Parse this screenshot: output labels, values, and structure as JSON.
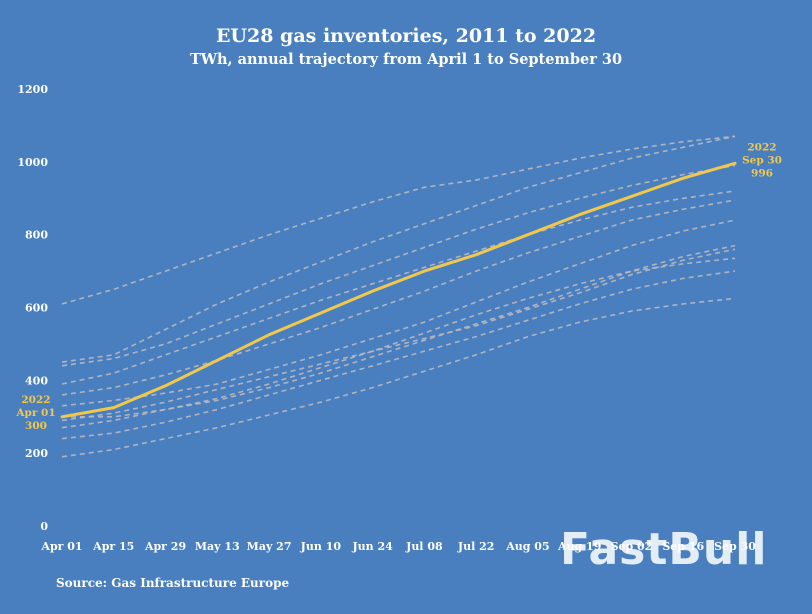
{
  "chart_data": {
    "type": "line",
    "title": "EU28 gas inventories, 2011 to 2022",
    "subtitle": "TWh, annual trajectory from April 1 to September 30",
    "ylim": [
      0,
      1200
    ],
    "yticks": [
      0,
      200,
      400,
      600,
      800,
      1000,
      1200
    ],
    "x": [
      "Apr 01",
      "Apr 15",
      "Apr 29",
      "May 13",
      "May 27",
      "Jun 10",
      "Jun 24",
      "Jul 08",
      "Jul 22",
      "Aug 05",
      "Aug 19",
      "Sep 02",
      "Sep 16",
      "Sep 30"
    ],
    "xlim": [
      "Apr 01",
      "Sep 30"
    ],
    "grid": false,
    "legend": "none",
    "series": [
      {
        "name": "2022",
        "highlight": true,
        "color": "#f2c84b",
        "values": [
          300,
          325,
          385,
          455,
          525,
          585,
          645,
          700,
          745,
          800,
          855,
          905,
          955,
          996
        ]
      },
      {
        "values": [
          610,
          650,
          700,
          750,
          800,
          845,
          890,
          930,
          950,
          980,
          1010,
          1035,
          1055,
          1070
        ]
      },
      {
        "values": [
          450,
          470,
          540,
          610,
          670,
          725,
          780,
          830,
          880,
          930,
          970,
          1010,
          1040,
          1070
        ]
      },
      {
        "values": [
          440,
          460,
          500,
          555,
          610,
          665,
          715,
          765,
          815,
          860,
          900,
          935,
          965,
          990
        ]
      },
      {
        "values": [
          390,
          420,
          470,
          520,
          570,
          620,
          665,
          710,
          755,
          800,
          840,
          875,
          900,
          920
        ]
      },
      {
        "values": [
          360,
          380,
          415,
          455,
          500,
          545,
          595,
          645,
          700,
          750,
          795,
          840,
          870,
          895
        ]
      },
      {
        "values": [
          330,
          345,
          365,
          390,
          430,
          470,
          515,
          560,
          615,
          670,
          720,
          770,
          810,
          840
        ]
      },
      {
        "values": [
          300,
          300,
          320,
          345,
          380,
          420,
          465,
          510,
          555,
          600,
          650,
          700,
          740,
          770
        ]
      },
      {
        "values": [
          290,
          310,
          340,
          375,
          410,
          445,
          480,
          515,
          550,
          595,
          640,
          690,
          730,
          760
        ]
      },
      {
        "values": [
          270,
          290,
          320,
          350,
          390,
          435,
          480,
          530,
          580,
          625,
          665,
          700,
          720,
          735
        ]
      },
      {
        "values": [
          240,
          255,
          285,
          320,
          360,
          400,
          440,
          480,
          520,
          565,
          610,
          650,
          680,
          700
        ]
      },
      {
        "values": [
          190,
          210,
          240,
          270,
          305,
          340,
          380,
          425,
          470,
          520,
          560,
          590,
          610,
          625
        ]
      }
    ],
    "annotations": [
      {
        "lines": [
          "2022",
          "Apr 01",
          "300"
        ],
        "x": "Apr 01",
        "y": 300
      },
      {
        "lines": [
          "2022",
          "Sep 30",
          "996"
        ],
        "x": "Sep 30",
        "y": 996
      }
    ]
  },
  "source": "Source: Gas Infrastructure Europe",
  "watermark": "FastBull"
}
